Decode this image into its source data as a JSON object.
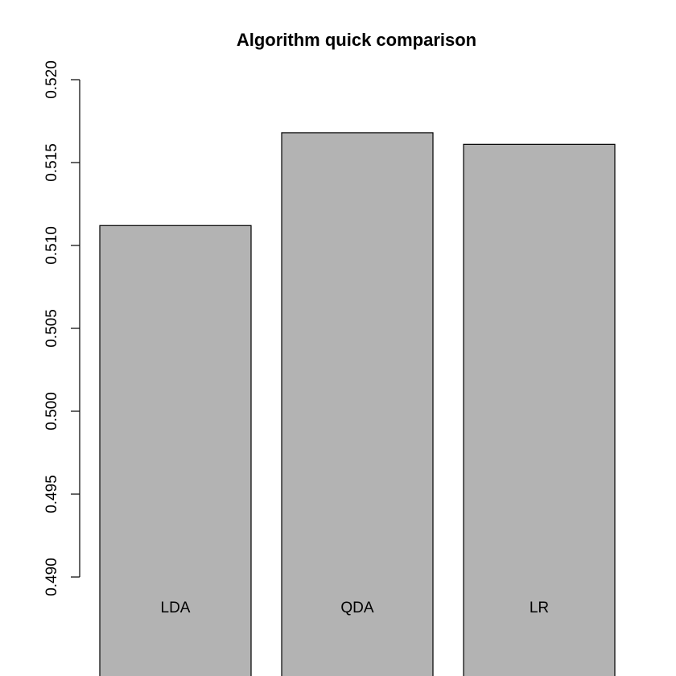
{
  "chart_data": {
    "type": "bar",
    "title": "Algorithm quick comparison",
    "xlabel": "",
    "ylabel": "",
    "categories": [
      "LDA",
      "QDA",
      "LR"
    ],
    "values": [
      0.5112,
      0.5168,
      0.5161
    ],
    "ylim": [
      0.49,
      0.52
    ],
    "yticks": [
      "0.490",
      "0.495",
      "0.500",
      "0.505",
      "0.510",
      "0.515",
      "0.520"
    ],
    "bar_color": "#b3b3b3",
    "grid": false,
    "legend": "none",
    "bar_labels_position": "inside-bottom"
  }
}
